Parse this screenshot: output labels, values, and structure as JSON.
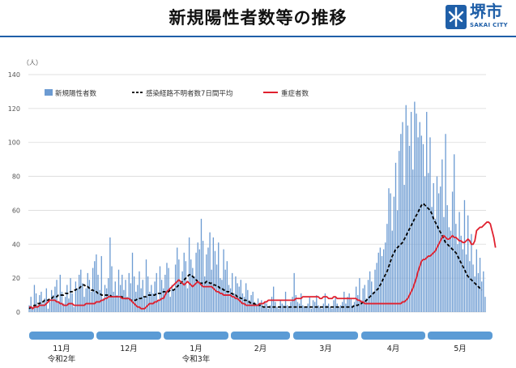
{
  "header": {
    "title": "新規陽性者数等の推移",
    "logo_text": "堺市",
    "logo_sub": "SAKAI CITY"
  },
  "colors": {
    "bar": "#6c9bd2",
    "bar_edge": "#4f81bd",
    "dashed_line": "#000000",
    "severe_line": "#e0202e",
    "band": "#5b9bd5",
    "rule": "#1f5fa8"
  },
  "chart_data": {
    "type": "bar",
    "y_unit_label": "（人）",
    "ylim": [
      0,
      140
    ],
    "yticks": [
      0,
      20,
      40,
      60,
      80,
      100,
      120,
      140
    ],
    "grid": true,
    "legend_position": "top-left",
    "series": [
      {
        "name": "新規陽性者数",
        "type": "bar",
        "values": [
          4,
          9,
          3,
          16,
          11,
          4,
          10,
          12,
          5,
          8,
          14,
          2,
          6,
          13,
          10,
          15,
          19,
          6,
          22,
          12,
          5,
          9,
          16,
          8,
          20,
          11,
          3,
          18,
          14,
          22,
          25,
          17,
          9,
          14,
          23,
          19,
          12,
          26,
          30,
          34,
          22,
          13,
          33,
          8,
          16,
          14,
          20,
          44,
          27,
          12,
          18,
          10,
          25,
          16,
          22,
          13,
          19,
          9,
          23,
          17,
          35,
          21,
          12,
          16,
          24,
          14,
          19,
          9,
          31,
          21,
          12,
          16,
          11,
          18,
          23,
          7,
          27,
          19,
          14,
          22,
          29,
          26,
          9,
          16,
          13,
          28,
          38,
          31,
          17,
          24,
          35,
          30,
          14,
          44,
          31,
          26,
          21,
          35,
          41,
          37,
          55,
          42,
          21,
          34,
          38,
          47,
          25,
          44,
          36,
          28,
          41,
          20,
          19,
          37,
          25,
          30,
          16,
          14,
          23,
          11,
          21,
          17,
          15,
          19,
          11,
          9,
          17,
          13,
          7,
          10,
          12,
          6,
          5,
          8,
          4,
          7,
          3,
          6,
          5,
          2,
          4,
          9,
          15,
          6,
          3,
          2,
          7,
          5,
          4,
          12,
          4,
          3,
          6,
          9,
          23,
          10,
          6,
          5,
          11,
          4,
          3,
          3,
          5,
          9,
          2,
          7,
          6,
          10,
          4,
          3,
          2,
          5,
          11,
          4,
          5,
          3,
          2,
          7,
          9,
          5,
          3,
          4,
          6,
          12,
          5,
          9,
          11,
          8,
          4,
          6,
          15,
          10,
          20,
          7,
          14,
          16,
          8,
          19,
          24,
          18,
          12,
          25,
          29,
          35,
          38,
          33,
          37,
          41,
          52,
          73,
          70,
          48,
          68,
          88,
          60,
          95,
          105,
          112,
          75,
          122,
          110,
          98,
          118,
          84,
          124,
          117,
          103,
          112,
          104,
          99,
          80,
          118,
          82,
          103,
          62,
          76,
          55,
          80,
          70,
          74,
          90,
          56,
          105,
          63,
          50,
          48,
          71,
          93,
          52,
          40,
          59,
          45,
          37,
          66,
          34,
          57,
          30,
          46,
          28,
          21,
          37,
          23,
          32,
          18,
          24,
          9
        ]
      },
      {
        "name": "感染経路不明者数7日間平均",
        "type": "line",
        "style": "dashed",
        "values": [
          2,
          3,
          3,
          4,
          4,
          5,
          5,
          6,
          6,
          7,
          7,
          7,
          8,
          8,
          9,
          9,
          9,
          10,
          10,
          10,
          10,
          11,
          11,
          11,
          12,
          12,
          13,
          13,
          14,
          14,
          15,
          16,
          16,
          15,
          15,
          14,
          13,
          13,
          12,
          12,
          11,
          11,
          10,
          10,
          10,
          10,
          10,
          10,
          9,
          9,
          9,
          9,
          9,
          9,
          9,
          8,
          8,
          8,
          8,
          7,
          7,
          7,
          7,
          8,
          8,
          8,
          9,
          9,
          9,
          10,
          10,
          10,
          10,
          10,
          11,
          11,
          11,
          11,
          12,
          12,
          12,
          12,
          13,
          13,
          13,
          14,
          15,
          16,
          17,
          18,
          19,
          20,
          21,
          22,
          22,
          21,
          20,
          19,
          18,
          17,
          17,
          17,
          17,
          18,
          18,
          17,
          17,
          16,
          16,
          15,
          15,
          14,
          14,
          13,
          13,
          12,
          12,
          11,
          11,
          10,
          10,
          9,
          9,
          8,
          8,
          7,
          7,
          6,
          6,
          5,
          5,
          5,
          4,
          4,
          4,
          4,
          3,
          3,
          3,
          3,
          3,
          3,
          3,
          3,
          3,
          3,
          3,
          3,
          3,
          3,
          3,
          3,
          3,
          3,
          3,
          3,
          3,
          3,
          3,
          3,
          3,
          3,
          3,
          3,
          3,
          3,
          3,
          3,
          3,
          3,
          3,
          3,
          3,
          3,
          3,
          3,
          3,
          3,
          3,
          3,
          3,
          3,
          3,
          3,
          3,
          3,
          3,
          3,
          3,
          4,
          4,
          4,
          5,
          5,
          6,
          6,
          7,
          8,
          9,
          10,
          11,
          12,
          13,
          14,
          16,
          18,
          20,
          22,
          24,
          27,
          30,
          33,
          35,
          37,
          38,
          39,
          40,
          41,
          43,
          45,
          47,
          49,
          51,
          53,
          55,
          57,
          59,
          61,
          63,
          64,
          63,
          62,
          61,
          60,
          58,
          55,
          53,
          51,
          49,
          47,
          45,
          43,
          41,
          40,
          39,
          38,
          37,
          36,
          35,
          33,
          31,
          29,
          27,
          25,
          23,
          21,
          20,
          19,
          18,
          17,
          16,
          15,
          14,
          13
        ]
      },
      {
        "name": "重症者数",
        "type": "line",
        "values": [
          3,
          3,
          2,
          3,
          3,
          3,
          4,
          4,
          4,
          4,
          5,
          6,
          7,
          7,
          7,
          7,
          6,
          6,
          5,
          5,
          4,
          4,
          4,
          5,
          5,
          5,
          4,
          4,
          4,
          4,
          4,
          4,
          4,
          5,
          5,
          5,
          5,
          5,
          5,
          6,
          6,
          6,
          7,
          7,
          8,
          8,
          9,
          9,
          9,
          9,
          9,
          9,
          9,
          9,
          8,
          8,
          8,
          8,
          8,
          7,
          6,
          5,
          4,
          3,
          3,
          2,
          2,
          2,
          3,
          4,
          5,
          5,
          5,
          6,
          6,
          7,
          7,
          8,
          8,
          10,
          12,
          13,
          14,
          15,
          16,
          17,
          18,
          19,
          18,
          17,
          16,
          17,
          18,
          17,
          16,
          15,
          16,
          17,
          18,
          17,
          16,
          15,
          15,
          15,
          15,
          15,
          15,
          14,
          13,
          12,
          12,
          11,
          11,
          10,
          10,
          10,
          10,
          10,
          9,
          9,
          8,
          8,
          7,
          6,
          5,
          5,
          4,
          4,
          4,
          4,
          4,
          4,
          4,
          4,
          5,
          5,
          5,
          6,
          6,
          7,
          7,
          7,
          7,
          7,
          7,
          7,
          7,
          7,
          7,
          7,
          7,
          7,
          7,
          7,
          7,
          8,
          8,
          8,
          8,
          9,
          9,
          9,
          9,
          9,
          9,
          9,
          9,
          9,
          9,
          8,
          8,
          9,
          9,
          9,
          8,
          8,
          8,
          9,
          9,
          8,
          8,
          8,
          8,
          8,
          8,
          8,
          8,
          8,
          8,
          8,
          8,
          7,
          7,
          6,
          6,
          5,
          5,
          5,
          5,
          5,
          5,
          5,
          5,
          5,
          5,
          5,
          5,
          5,
          5,
          5,
          5,
          5,
          5,
          5,
          5,
          5,
          5,
          6,
          6,
          7,
          8,
          10,
          12,
          14,
          17,
          20,
          24,
          27,
          30,
          31,
          31,
          32,
          33,
          33,
          34,
          35,
          36,
          38,
          40,
          42,
          44,
          45,
          44,
          43,
          43,
          44,
          45,
          44,
          44,
          43,
          42,
          42,
          41,
          41,
          42,
          43,
          42,
          40,
          40,
          42,
          48,
          49,
          50,
          50,
          51,
          52,
          53,
          53,
          52,
          48,
          44,
          38
        ]
      }
    ],
    "months": [
      {
        "label": "11月",
        "sublabel": "令和2年"
      },
      {
        "label": "12月",
        "sublabel": ""
      },
      {
        "label": "1月",
        "sublabel": "令和3年"
      },
      {
        "label": "2月",
        "sublabel": ""
      },
      {
        "label": "3月",
        "sublabel": ""
      },
      {
        "label": "4月",
        "sublabel": ""
      },
      {
        "label": "5月",
        "sublabel": ""
      }
    ]
  }
}
